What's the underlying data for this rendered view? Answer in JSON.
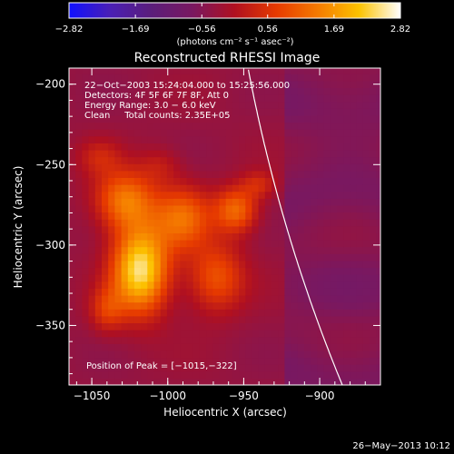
{
  "chart_data": {
    "type": "heatmap",
    "title": "Reconstructed RHESSI Image",
    "xlabel": "Heliocentric X (arcsec)",
    "ylabel": "Heliocentric Y (arcsec)",
    "xlim": [
      -1065,
      -860
    ],
    "ylim": [
      -387,
      -190
    ],
    "x_ticks": [
      -1050,
      -1000,
      -950,
      -900
    ],
    "x_tick_labels": [
      "−1050",
      "−1000",
      "−950",
      "−900"
    ],
    "y_ticks": [
      -200,
      -250,
      -300,
      -350
    ],
    "y_tick_labels": [
      "−200",
      "−250",
      "−300",
      "−350"
    ],
    "colorbar": {
      "range": [
        -2.82,
        2.82
      ],
      "tick_values": [
        -2.82,
        -1.69,
        -0.56,
        0.56,
        1.69,
        2.82
      ],
      "tick_labels": [
        "−2.82",
        "−1.69",
        "−0.56",
        "0.56",
        "1.69",
        "2.82"
      ],
      "unit_label": "(photons cm⁻² s⁻¹ asec⁻²)",
      "colors": [
        "#1010ff",
        "#4a1fb5",
        "#5b1e7a",
        "#7a1860",
        "#b01020",
        "#e63a00",
        "#f57a00",
        "#fcc200",
        "#ffffff"
      ]
    },
    "background_color": "#6a34a8",
    "limb_color": "#ffffff",
    "peak": [
      -1015,
      -322
    ],
    "annotations": [
      "22−Oct−2003 15:24:04.000 to 15:25:56.000",
      "Detectors: 4F 5F 6F 7F 8F, Att 0",
      "Energy Range: 3.0 − 6.0 keV",
      "Clean     Total counts: 2.35E+05"
    ],
    "peak_label": "Position of Peak = [−1015,−322]",
    "sources": [
      {
        "x": -1018,
        "y": -315,
        "amp": 2.82,
        "sx": 13,
        "sy": 19
      },
      {
        "x": -1028,
        "y": -272,
        "amp": 1.7,
        "sx": 14,
        "sy": 13
      },
      {
        "x": -990,
        "y": -283,
        "amp": 1.5,
        "sx": 13,
        "sy": 14
      },
      {
        "x": -955,
        "y": -278,
        "amp": 1.55,
        "sx": 10,
        "sy": 10
      },
      {
        "x": -968,
        "y": -320,
        "amp": 1.3,
        "sx": 13,
        "sy": 15
      },
      {
        "x": -1040,
        "y": -340,
        "amp": 0.9,
        "sx": 8,
        "sy": 10
      },
      {
        "x": -940,
        "y": -262,
        "amp": 0.7,
        "sx": 8,
        "sy": 6
      },
      {
        "x": -1045,
        "y": -245,
        "amp": 0.6,
        "sx": 10,
        "sy": 8
      },
      {
        "x": -1005,
        "y": -250,
        "amp": 0.5,
        "sx": 10,
        "sy": 8
      }
    ]
  },
  "footer": {
    "timestamp": "26−May−2013 10:12"
  }
}
